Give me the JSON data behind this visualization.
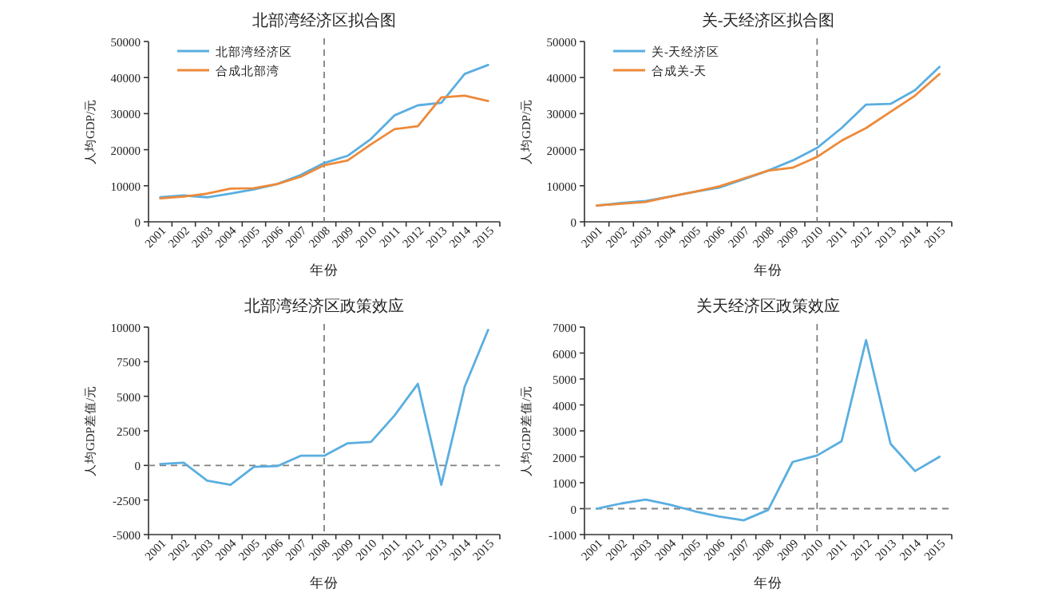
{
  "chart_data": [
    {
      "type": "line",
      "title": "北部湾经济区拟合图",
      "xlabel": "年份",
      "ylabel": "人均GDP/元",
      "categories": [
        "2001",
        "2002",
        "2003",
        "2004",
        "2005",
        "2006",
        "2007",
        "2008",
        "2009",
        "2010",
        "2011",
        "2012",
        "2013",
        "2014",
        "2015"
      ],
      "series": [
        {
          "name": "北部湾经济区",
          "color": "#5aaee0",
          "values": [
            6800,
            7300,
            6800,
            7800,
            9000,
            10500,
            13000,
            16300,
            18300,
            23000,
            29500,
            32300,
            33000,
            41000,
            43500
          ]
        },
        {
          "name": "合成北部湾",
          "color": "#ed8a3a",
          "values": [
            6500,
            7000,
            7800,
            9200,
            9300,
            10500,
            12500,
            15700,
            17000,
            21500,
            25700,
            26500,
            34500,
            35000,
            33500
          ]
        }
      ],
      "ylim": [
        0,
        50000
      ],
      "yticks": [
        0,
        10000,
        20000,
        30000,
        40000,
        50000
      ],
      "legend": "top left",
      "grid": false,
      "ref_lines": [
        {
          "axis": "x",
          "value": "2008",
          "color": "#808080",
          "line_style": "dashed"
        }
      ]
    },
    {
      "type": "line",
      "title": "关-天经济区拟合图",
      "xlabel": "年份",
      "ylabel": "人均GDP/元",
      "categories": [
        "2001",
        "2002",
        "2003",
        "2004",
        "2005",
        "2006",
        "2007",
        "2008",
        "2009",
        "2010",
        "2011",
        "2012",
        "2013",
        "2014",
        "2015"
      ],
      "series": [
        {
          "name": "关-天经济区",
          "color": "#5aaee0",
          "values": [
            4500,
            5200,
            5800,
            7000,
            8300,
            9500,
            11800,
            14200,
            17000,
            20500,
            26000,
            32500,
            32700,
            36500,
            43000
          ]
        },
        {
          "name": "合成关-天",
          "color": "#ed8a3a",
          "values": [
            4500,
            5000,
            5500,
            7000,
            8300,
            9800,
            12000,
            14200,
            15000,
            18000,
            22500,
            26000,
            30500,
            35000,
            41000
          ]
        }
      ],
      "ylim": [
        0,
        50000
      ],
      "yticks": [
        0,
        10000,
        20000,
        30000,
        40000,
        50000
      ],
      "legend": "top left",
      "grid": false,
      "ref_lines": [
        {
          "axis": "x",
          "value": "2010",
          "color": "#808080",
          "line_style": "dashed"
        }
      ]
    },
    {
      "type": "line",
      "title": "北部湾经济区政策效应",
      "xlabel": "年份",
      "ylabel": "人均GDP差值/元",
      "categories": [
        "2001",
        "2002",
        "2003",
        "2004",
        "2005",
        "2006",
        "2007",
        "2008",
        "2009",
        "2010",
        "2011",
        "2012",
        "2013",
        "2014",
        "2015"
      ],
      "series": [
        {
          "color": "#5aaee0",
          "values": [
            100,
            200,
            -1100,
            -1400,
            -100,
            -50,
            700,
            700,
            1600,
            1700,
            3600,
            5900,
            -1400,
            5700,
            9800
          ]
        }
      ],
      "ylim": [
        -5000,
        10000
      ],
      "yticks": [
        -5000,
        -2500,
        0,
        2500,
        5000,
        7500,
        10000
      ],
      "grid": false,
      "ref_lines": [
        {
          "axis": "x",
          "value": "2008",
          "color": "#808080",
          "line_style": "dashed"
        },
        {
          "axis": "y",
          "value": 0,
          "color": "#808080",
          "line_style": "dashed"
        }
      ]
    },
    {
      "type": "line",
      "title": "关天经济区政策效应",
      "xlabel": "年份",
      "ylabel": "人均GDP差值/元",
      "categories": [
        "2001",
        "2002",
        "2003",
        "2004",
        "2005",
        "2006",
        "2007",
        "2008",
        "2009",
        "2010",
        "2011",
        "2012",
        "2013",
        "2014",
        "2015"
      ],
      "series": [
        {
          "color": "#5aaee0",
          "values": [
            0,
            200,
            350,
            150,
            -100,
            -300,
            -450,
            -50,
            1800,
            2050,
            2600,
            6500,
            2500,
            1450,
            2000
          ]
        }
      ],
      "ylim": [
        -1000,
        7000
      ],
      "yticks": [
        -1000,
        0,
        1000,
        2000,
        3000,
        4000,
        5000,
        6000,
        7000
      ],
      "grid": false,
      "ref_lines": [
        {
          "axis": "x",
          "value": "2010",
          "color": "#808080",
          "line_style": "dashed"
        },
        {
          "axis": "y",
          "value": 0,
          "color": "#808080",
          "line_style": "dashed"
        }
      ]
    }
  ]
}
